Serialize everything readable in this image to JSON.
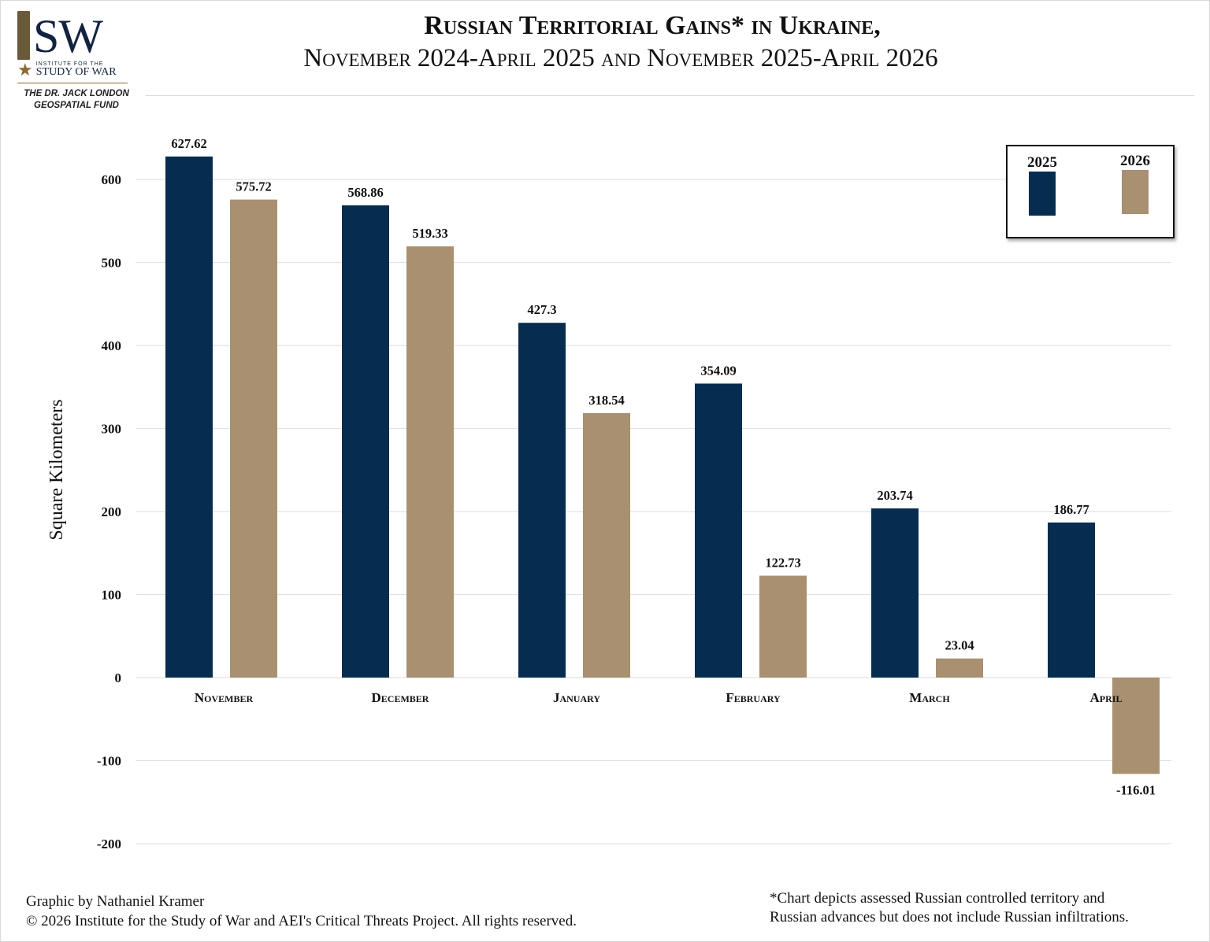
{
  "logo": {
    "mark": "SW",
    "small_text": "INSTITUTE FOR THE",
    "study_text": "STUDY OF WAR",
    "fund_line1": "THE DR. JACK LONDON",
    "fund_line2": "GEOSPATIAL FUND"
  },
  "colors": {
    "series_2025": "#062c4f",
    "series_2026": "#a89070",
    "grid": "#e2e2e2"
  },
  "chart_data": {
    "type": "bar",
    "title_line1": "Russian Territorial Gains* in Ukraine,",
    "title_line2": "November 2024-April 2025 and November 2025-April 2026",
    "ylabel": "Square Kilometers",
    "xlabel": "",
    "ylim": [
      -200,
      600
    ],
    "yticks": [
      -200,
      -100,
      0,
      100,
      200,
      300,
      400,
      500,
      600
    ],
    "categories": [
      "November",
      "December",
      "January",
      "February",
      "March",
      "April"
    ],
    "series": [
      {
        "name": "2025",
        "values": [
          627.62,
          568.86,
          427.3,
          354.09,
          203.74,
          186.77
        ]
      },
      {
        "name": "2026",
        "values": [
          575.72,
          519.33,
          318.54,
          122.73,
          23.04,
          -116.01
        ]
      }
    ],
    "grid": true,
    "legend_position": "top-right"
  },
  "footer": {
    "credit_line1": "Graphic by Nathaniel Kramer",
    "credit_line2": "© 2026 Institute for the Study of War and AEI's Critical Threats Project. All rights reserved.",
    "note_line1": "*Chart depicts assessed Russian controlled territory and",
    "note_line2": "Russian advances but does not include Russian infiltrations."
  }
}
